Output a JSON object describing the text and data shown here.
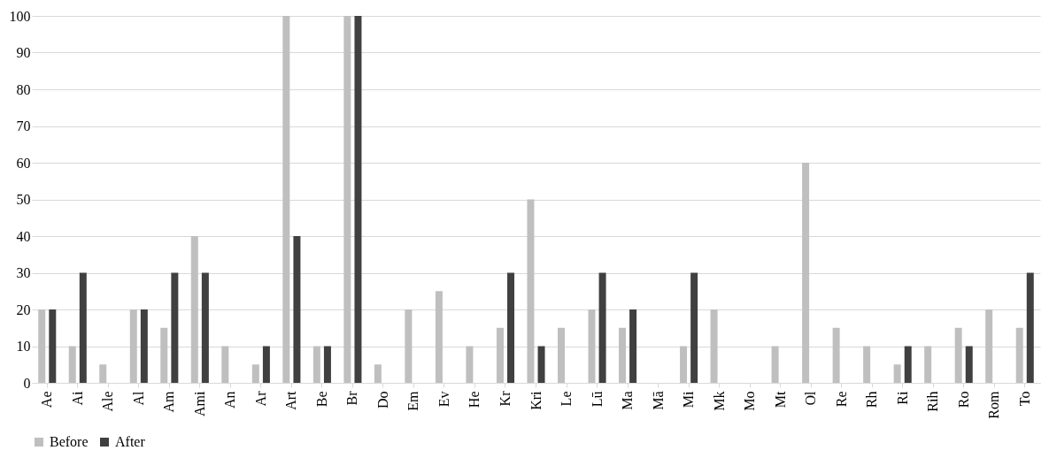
{
  "chart_data": {
    "type": "bar",
    "categories": [
      "Ae",
      "Ai",
      "Ale",
      "Al",
      "Am",
      "Ami",
      "An",
      "Ar",
      "Art",
      "Be",
      "Br",
      "Do",
      "Em",
      "Ev",
      "He",
      "Kr",
      "Kri",
      "Le",
      "Lū",
      "Ma",
      "Mā",
      "Mi",
      "Mk",
      "Mo",
      "Mt",
      "Ol",
      "Re",
      "Rh",
      "Ri",
      "Rih",
      "Ro",
      "Rom",
      "To"
    ],
    "series": [
      {
        "name": "Before",
        "color": "#bfbfbf",
        "values": [
          20,
          10,
          5,
          20,
          15,
          40,
          10,
          5,
          100,
          10,
          100,
          5,
          20,
          25,
          10,
          15,
          50,
          15,
          20,
          15,
          0,
          10,
          20,
          0,
          10,
          60,
          15,
          10,
          5,
          10,
          15,
          20,
          15
        ]
      },
      {
        "name": "After",
        "color": "#404040",
        "values": [
          20,
          30,
          0,
          20,
          30,
          30,
          0,
          10,
          40,
          10,
          100,
          0,
          0,
          0,
          0,
          30,
          10,
          0,
          30,
          20,
          0,
          30,
          0,
          0,
          0,
          0,
          0,
          0,
          10,
          0,
          10,
          0,
          30
        ]
      }
    ],
    "ylim": [
      0,
      100
    ],
    "yticks": [
      0,
      10,
      20,
      30,
      40,
      50,
      60,
      70,
      80,
      90,
      100
    ],
    "grid": "y",
    "legend": "bottom"
  }
}
